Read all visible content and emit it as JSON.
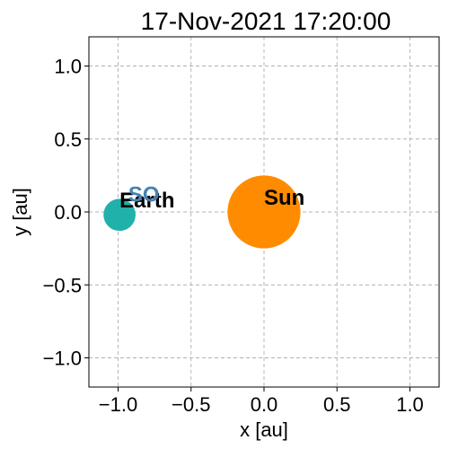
{
  "chart_data": {
    "type": "scatter",
    "title": "17-Nov-2021 17:20:00",
    "xlabel": "x [au]",
    "ylabel": "y [au]",
    "xlim": [
      -1.2,
      1.2
    ],
    "ylim": [
      -1.2,
      1.2
    ],
    "xticks": [
      -1.0,
      -0.5,
      0.0,
      0.5,
      1.0
    ],
    "yticks": [
      -1.0,
      -0.5,
      0.0,
      0.5,
      1.0
    ],
    "xtick_labels": [
      "−1.0",
      "−0.5",
      "0.0",
      "0.5",
      "1.0"
    ],
    "ytick_labels": [
      "−1.0",
      "−0.5",
      "0.0",
      "0.5",
      "1.0"
    ],
    "grid": true,
    "bodies": [
      {
        "name": "Sun",
        "x": 0.0,
        "y": 0.0,
        "color": "#ff8c00",
        "label_color": "#000000",
        "radius_au": 0.25,
        "label_dx": 0.0,
        "label_dy": 0.05
      },
      {
        "name": "Earth",
        "x": -0.99,
        "y": -0.02,
        "color": "#20b2aa",
        "label_color": "#000000",
        "radius_au": 0.11,
        "label_dx": 0.0,
        "label_dy": 0.05
      },
      {
        "name": "SO",
        "x": -0.93,
        "y": 0.04,
        "color": "#4682b4",
        "label_color": "#4682b4",
        "radius_au": 0.0,
        "label_dx": 0.0,
        "label_dy": 0.03
      }
    ]
  }
}
